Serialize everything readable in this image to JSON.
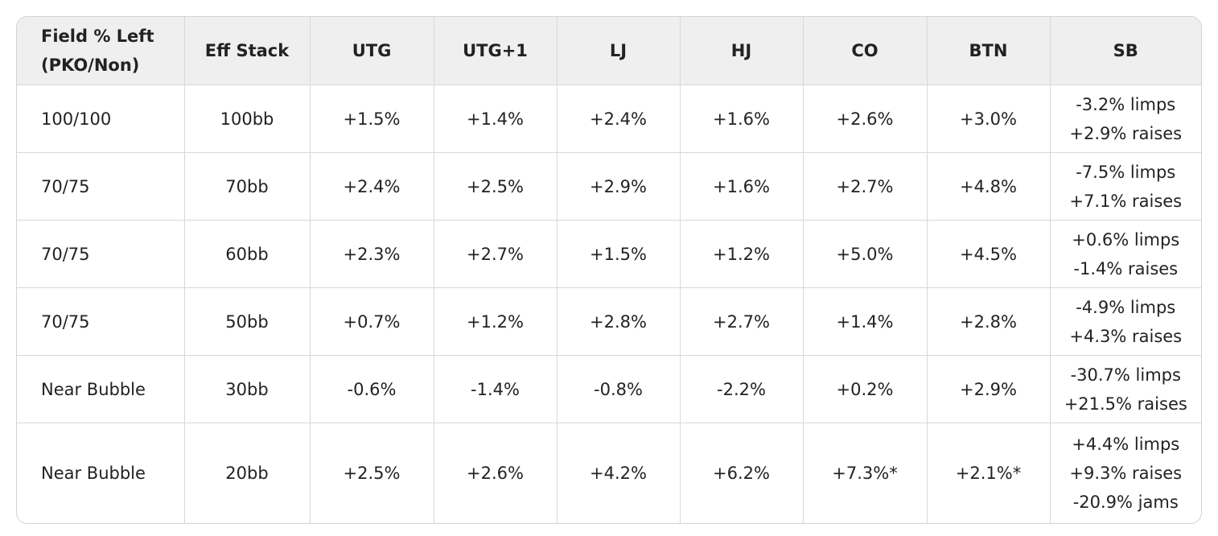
{
  "table": {
    "header": [
      [
        "Field % Left",
        "(PKO/Non)"
      ],
      "Eff Stack",
      "UTG",
      "UTG+1",
      "LJ",
      "HJ",
      "CO",
      "BTN",
      "SB"
    ],
    "rows": [
      [
        "100/100",
        "100bb",
        "+1.5%",
        "+1.4%",
        "+2.4%",
        "+1.6%",
        "+2.6%",
        "+3.0%",
        [
          "-3.2% limps",
          "+2.9% raises"
        ]
      ],
      [
        "70/75",
        "70bb",
        "+2.4%",
        "+2.5%",
        "+2.9%",
        "+1.6%",
        "+2.7%",
        "+4.8%",
        [
          "-7.5% limps",
          "+7.1% raises"
        ]
      ],
      [
        "70/75",
        "60bb",
        "+2.3%",
        "+2.7%",
        "+1.5%",
        "+1.2%",
        "+5.0%",
        "+4.5%",
        [
          "+0.6% limps",
          "-1.4% raises"
        ]
      ],
      [
        "70/75",
        "50bb",
        "+0.7%",
        "+1.2%",
        "+2.8%",
        "+2.7%",
        "+1.4%",
        "+2.8%",
        [
          "-4.9% limps",
          "+4.3% raises"
        ]
      ],
      [
        "Near Bubble",
        "30bb",
        "-0.6%",
        "-1.4%",
        "-0.8%",
        "-2.2%",
        "+0.2%",
        "+2.9%",
        [
          "-30.7% limps",
          "+21.5% raises"
        ]
      ],
      [
        "Near Bubble",
        "20bb",
        "+2.5%",
        "+2.6%",
        "+4.2%",
        "+6.2%",
        "+7.3%*",
        "+2.1%*",
        [
          "+4.4% limps",
          "+9.3% raises",
          "-20.9% jams"
        ]
      ]
    ]
  }
}
